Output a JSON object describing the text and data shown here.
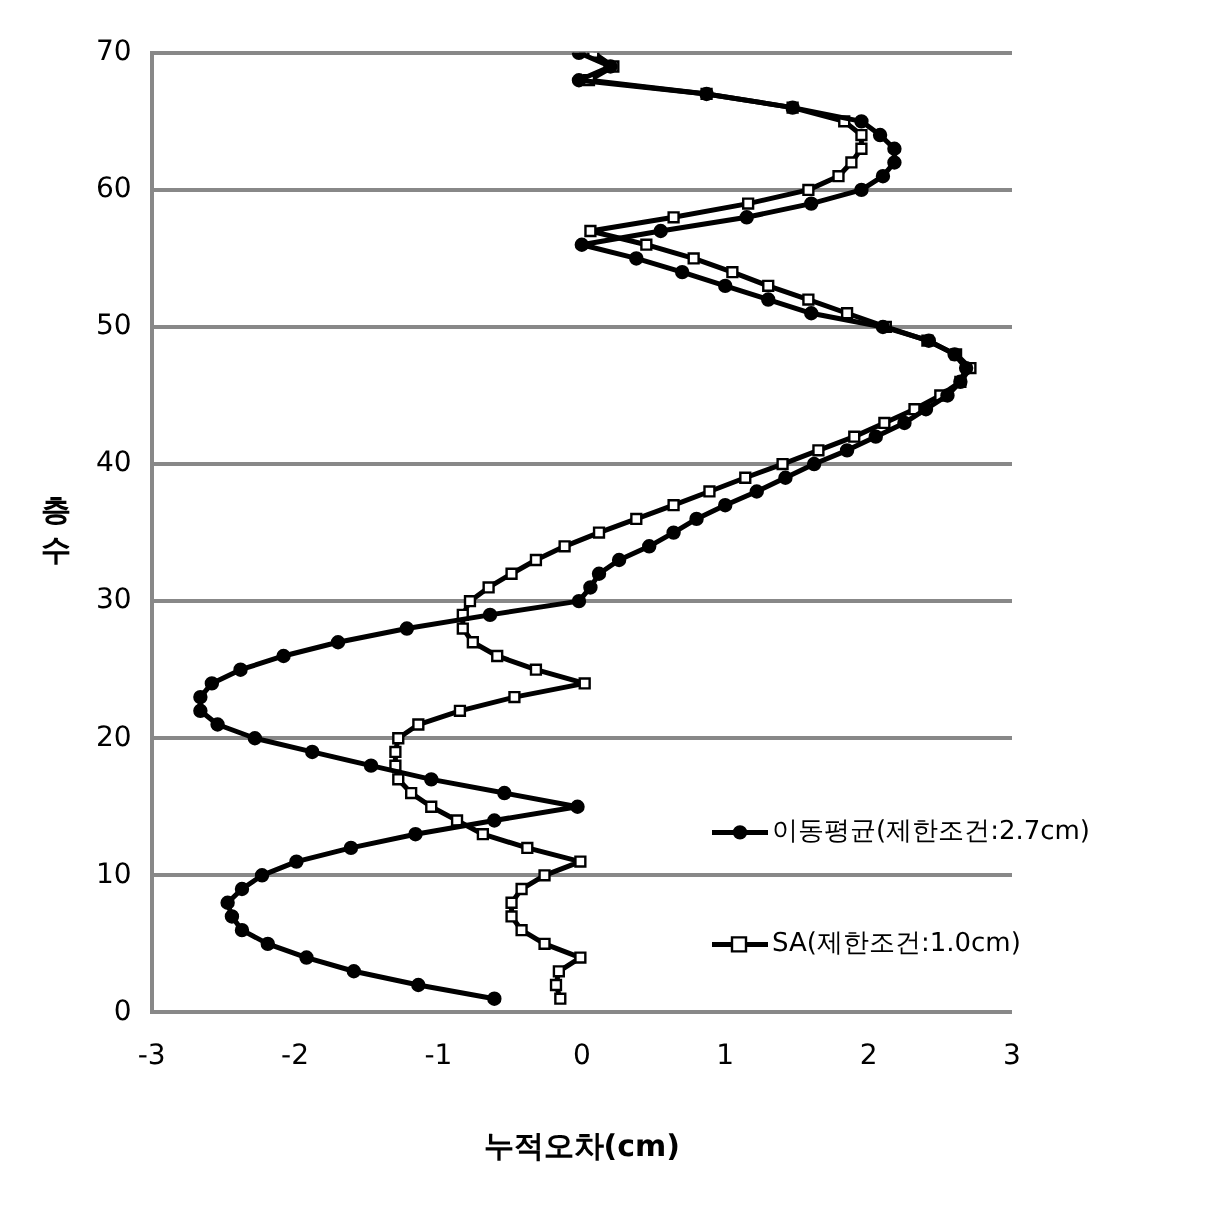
{
  "chart_data": {
    "type": "line",
    "xlabel": "누적오차(cm)",
    "ylabel": "층수",
    "xlim": [
      -3,
      3
    ],
    "xticks": [
      -3,
      -2,
      -1,
      0,
      1,
      2,
      3
    ],
    "ylim": [
      0,
      70
    ],
    "yticks": [
      0,
      10,
      20,
      30,
      40,
      50,
      60,
      70
    ],
    "grid": "y",
    "legend": "bottom right",
    "line_style": "solid",
    "series": [
      {
        "name": "이동평균(제한조건:2.7cm)",
        "color": "#000000",
        "marker": "circle",
        "x": [
          -0.61,
          -1.14,
          -1.59,
          -1.92,
          -2.19,
          -2.37,
          -2.44,
          -2.47,
          -2.37,
          -2.23,
          -1.99,
          -1.61,
          -1.16,
          -0.61,
          -0.03,
          -0.54,
          -1.05,
          -1.47,
          -1.88,
          -2.28,
          -2.54,
          -2.66,
          -2.66,
          -2.58,
          -2.38,
          -2.08,
          -1.7,
          -1.22,
          -0.64,
          -0.02,
          0.06,
          0.12,
          0.26,
          0.47,
          0.64,
          0.8,
          1.0,
          1.22,
          1.42,
          1.62,
          1.85,
          2.05,
          2.25,
          2.4,
          2.55,
          2.64,
          2.68,
          2.6,
          2.42,
          2.1,
          1.6,
          1.3,
          1.0,
          0.7,
          0.38,
          0.0,
          0.55,
          1.15,
          1.6,
          1.95,
          2.1,
          2.18,
          2.18,
          2.08,
          1.95,
          1.47,
          0.87,
          -0.02,
          0.2,
          -0.02
        ],
        "values": [
          1,
          2,
          3,
          4,
          5,
          6,
          7,
          8,
          9,
          10,
          11,
          12,
          13,
          14,
          15,
          16,
          17,
          18,
          19,
          20,
          21,
          22,
          23,
          24,
          25,
          26,
          27,
          28,
          29,
          30,
          31,
          32,
          33,
          34,
          35,
          36,
          37,
          38,
          39,
          40,
          41,
          42,
          43,
          44,
          45,
          46,
          47,
          48,
          49,
          50,
          51,
          52,
          53,
          54,
          55,
          56,
          57,
          58,
          59,
          60,
          61,
          62,
          63,
          64,
          65,
          66,
          67,
          68,
          69,
          70
        ]
      },
      {
        "name": "SA(제한조건:1.0cm)",
        "color": "#000000",
        "marker": "square",
        "x": [
          -0.15,
          -0.18,
          -0.16,
          -0.01,
          -0.26,
          -0.42,
          -0.49,
          -0.49,
          -0.42,
          -0.26,
          -0.01,
          -0.38,
          -0.69,
          -0.87,
          -1.05,
          -1.19,
          -1.28,
          -1.3,
          -1.3,
          -1.28,
          -1.14,
          -0.85,
          -0.47,
          0.02,
          -0.32,
          -0.59,
          -0.76,
          -0.83,
          -0.83,
          -0.78,
          -0.65,
          -0.49,
          -0.32,
          -0.12,
          0.12,
          0.38,
          0.64,
          0.89,
          1.14,
          1.4,
          1.65,
          1.9,
          2.11,
          2.32,
          2.5,
          2.64,
          2.71,
          2.61,
          2.41,
          2.12,
          1.85,
          1.58,
          1.3,
          1.05,
          0.78,
          0.45,
          0.06,
          0.64,
          1.16,
          1.58,
          1.79,
          1.88,
          1.95,
          1.95,
          1.83,
          1.47,
          0.87,
          0.05,
          0.22,
          0.08
        ],
        "values": [
          1,
          2,
          3,
          4,
          5,
          6,
          7,
          8,
          9,
          10,
          11,
          12,
          13,
          14,
          15,
          16,
          17,
          18,
          19,
          20,
          21,
          22,
          23,
          24,
          25,
          26,
          27,
          28,
          29,
          30,
          31,
          32,
          33,
          34,
          35,
          36,
          37,
          38,
          39,
          40,
          41,
          42,
          43,
          44,
          45,
          46,
          47,
          48,
          49,
          50,
          51,
          52,
          53,
          54,
          55,
          56,
          57,
          58,
          59,
          60,
          61,
          62,
          63,
          64,
          65,
          66,
          67,
          68,
          69,
          70
        ]
      }
    ]
  }
}
